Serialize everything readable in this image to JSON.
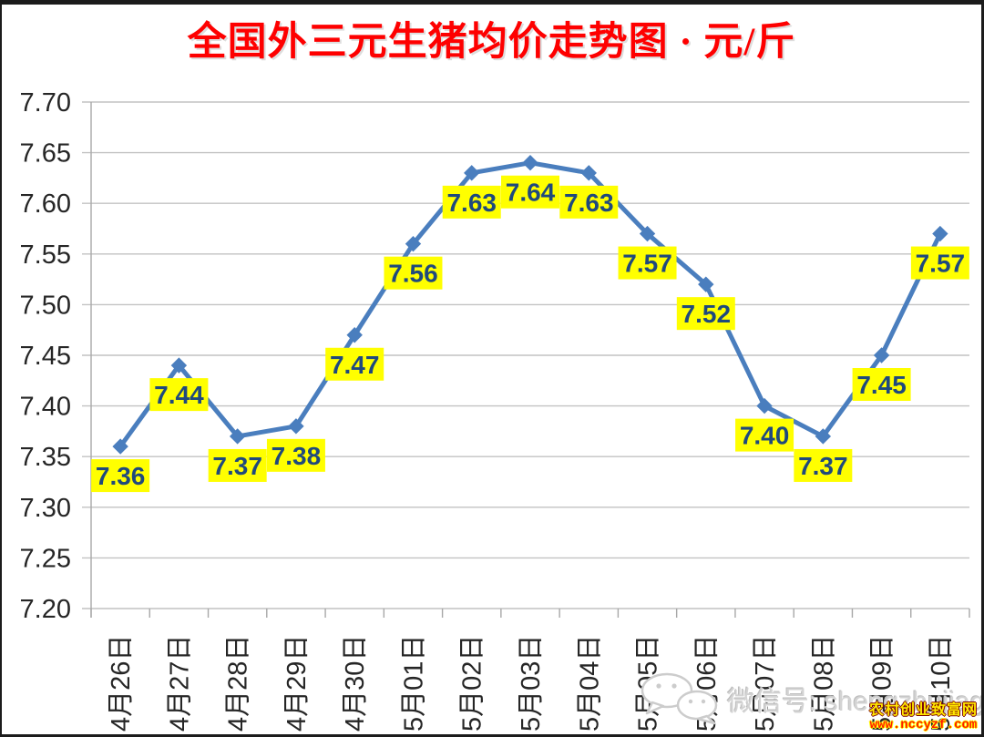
{
  "title": {
    "text": "全国外三元生猪均价走势图 · 元/斤",
    "color": "#fe0000"
  },
  "chart_data": {
    "type": "line",
    "title": "全国外三元生猪均价走势图 · 元/斤",
    "unit": "元/斤",
    "categories": [
      "4月26日",
      "4月27日",
      "4月28日",
      "4月29日",
      "4月30日",
      "5月01日",
      "5月02日",
      "5月03日",
      "5月04日",
      "5月05日",
      "5月06日",
      "5月07日",
      "5月08日",
      "5月09日",
      "5月10日"
    ],
    "values": [
      7.36,
      7.44,
      7.37,
      7.38,
      7.47,
      7.56,
      7.63,
      7.64,
      7.63,
      7.57,
      7.52,
      7.4,
      7.37,
      7.45,
      7.57
    ],
    "data_labels": [
      "7.36",
      "7.44",
      "7.37",
      "7.38",
      "7.47",
      "7.56",
      "7.63",
      "7.64",
      "7.63",
      "7.57",
      "7.52",
      "7.40",
      "7.37",
      "7.45",
      "7.57"
    ],
    "xlabel": "",
    "ylabel": "",
    "ylim": [
      7.2,
      7.7
    ],
    "ytick_step": 0.05,
    "y_ticks": [
      "7.20",
      "7.25",
      "7.30",
      "7.35",
      "7.40",
      "7.45",
      "7.50",
      "7.55",
      "7.60",
      "7.65",
      "7.70"
    ],
    "grid": true,
    "legend": "none",
    "marker": "diamond",
    "colors": {
      "line": "#4a7ebe",
      "marker": "#4a7ebe",
      "label_bg": "#ffff00",
      "label_text": "#1f497d",
      "gridline": "#c2c2c2",
      "axis": "#a8a8a8",
      "tick_text": "#262626",
      "title": "#fe0000"
    }
  },
  "watermarks": {
    "wechat": {
      "icon": "wechat-icon",
      "text": "微信号: shengzhujiage"
    },
    "site": {
      "name": "农村创业致富网",
      "url": "www.nccyzf.com"
    }
  }
}
